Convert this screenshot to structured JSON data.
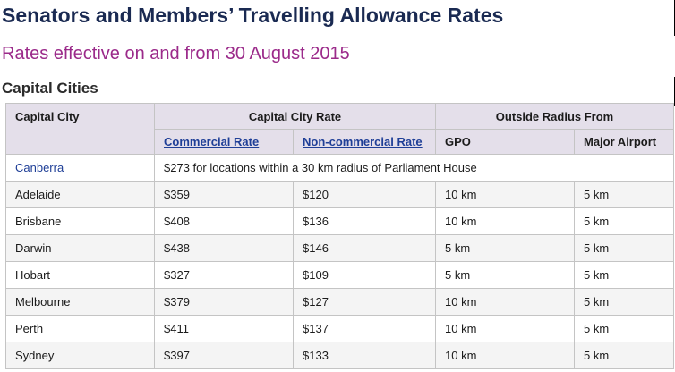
{
  "title": "Senators and Members’ Travelling Allowance Rates",
  "subtitle": "Rates effective on and from 30 August 2015",
  "section": "Capital Cities",
  "headers": {
    "capital_city": "Capital City",
    "capital_city_rate": "Capital City Rate",
    "outside_radius_from": "Outside Radius From",
    "commercial_rate": "Commercial Rate",
    "non_commercial_rate": "Non-commercial Rate",
    "gpo": "GPO",
    "major_airport": "Major Airport"
  },
  "canberra": {
    "city": "Canberra",
    "note": "$273 for locations within a 30 km radius of Parliament House"
  },
  "rows": [
    {
      "city": "Adelaide",
      "commercial": "$359",
      "noncommercial": "$120",
      "gpo": "10 km",
      "airport": "5 km"
    },
    {
      "city": "Brisbane",
      "commercial": "$408",
      "noncommercial": "$136",
      "gpo": "10 km",
      "airport": "5 km"
    },
    {
      "city": "Darwin",
      "commercial": "$438",
      "noncommercial": "$146",
      "gpo": "5 km",
      "airport": "5 km"
    },
    {
      "city": "Hobart",
      "commercial": "$327",
      "noncommercial": "$109",
      "gpo": "5 km",
      "airport": "5 km"
    },
    {
      "city": "Melbourne",
      "commercial": "$379",
      "noncommercial": "$127",
      "gpo": "10 km",
      "airport": "5 km"
    },
    {
      "city": "Perth",
      "commercial": "$411",
      "noncommercial": "$137",
      "gpo": "10 km",
      "airport": "5 km"
    },
    {
      "city": "Sydney",
      "commercial": "$397",
      "noncommercial": "$133",
      "gpo": "10 km",
      "airport": "5 km"
    }
  ]
}
